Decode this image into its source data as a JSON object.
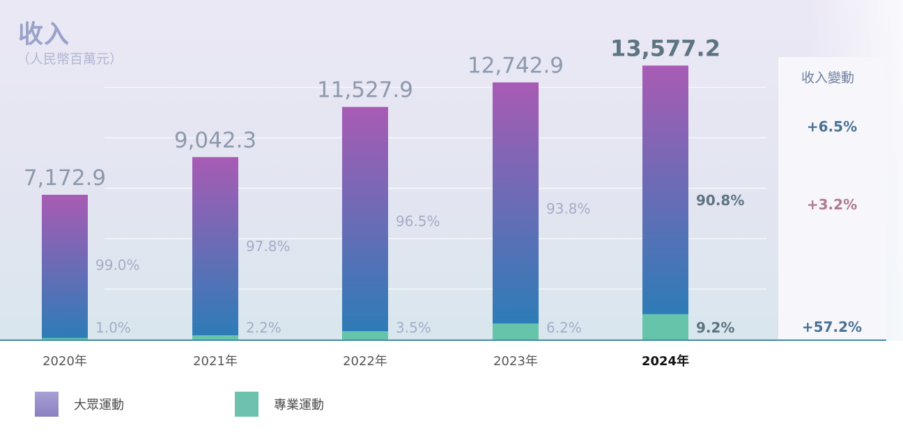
{
  "header": {
    "title": "收入",
    "unit": "（人民幣百萬元）"
  },
  "change_column": {
    "header": "收入變動",
    "values": [
      {
        "text": "+6.5%",
        "color": "#4a7294"
      },
      {
        "text": "+3.2%",
        "color": "#b07a8b"
      },
      {
        "text": "+57.2%",
        "color": "#4a7294"
      }
    ]
  },
  "legend": [
    {
      "label": "大眾運動",
      "color": "#8a7fc0"
    },
    {
      "label": "專業運動",
      "color": "#6cc2ad"
    }
  ],
  "colors": {
    "mass_top": "#a85bb4",
    "mass_bottom": "#2d7cb7",
    "pro": "#66c4aa",
    "total_label": "#8d99ac",
    "pct_label": "#a5acc6",
    "highlight_label": "#5d7481",
    "axis": "#3f8ca8"
  },
  "chart_data": {
    "type": "bar",
    "stacked": true,
    "categories": [
      "2020年",
      "2021年",
      "2022年",
      "2023年",
      "2024年"
    ],
    "highlight_category": "2024年",
    "totals": [
      7172.9,
      9042.3,
      11527.9,
      12742.9,
      13577.2
    ],
    "total_labels": [
      "7,172.9",
      "9,042.3",
      "11,527.9",
      "12,742.9",
      "13,577.2"
    ],
    "series": [
      {
        "name": "大眾運動",
        "percent": [
          99.0,
          97.8,
          96.5,
          93.8,
          90.8
        ],
        "percent_labels": [
          "99.0%",
          "97.8%",
          "96.5%",
          "93.8%",
          "90.8%"
        ]
      },
      {
        "name": "專業運動",
        "percent": [
          1.0,
          2.2,
          3.5,
          6.2,
          9.2
        ],
        "percent_labels": [
          "1.0%",
          "2.2%",
          "3.5%",
          "6.2%",
          "9.2%"
        ]
      }
    ],
    "ylim": [
      0,
      15000
    ],
    "grid": true
  }
}
